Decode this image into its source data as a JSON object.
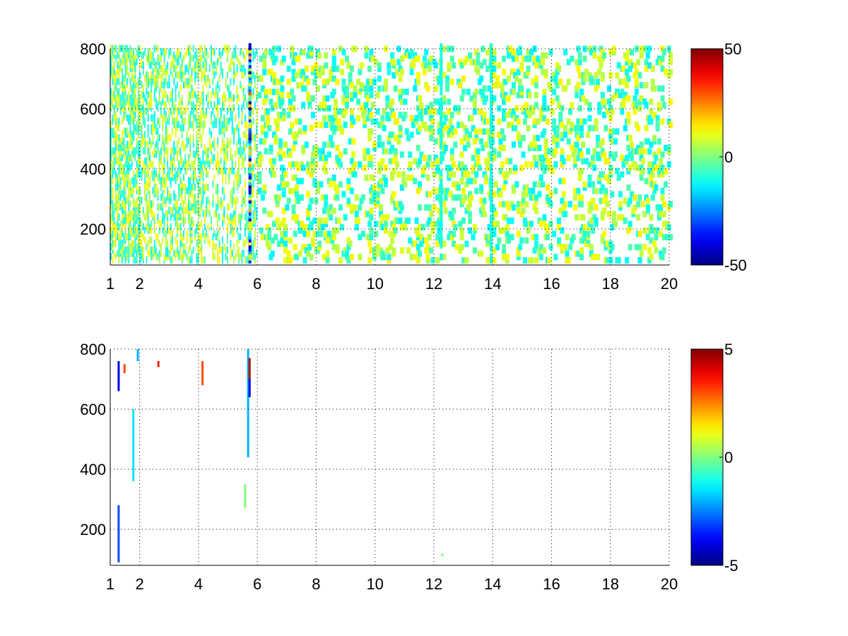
{
  "chart_data": [
    {
      "type": "heatmap",
      "title": "",
      "xlabel": "",
      "ylabel": "",
      "xlim": [
        1,
        20
      ],
      "ylim": [
        80,
        800
      ],
      "x_ticks": [
        1,
        2,
        4,
        6,
        8,
        10,
        12,
        14,
        16,
        18,
        20
      ],
      "y_ticks": [
        200,
        400,
        600,
        800
      ],
      "grid": true,
      "colormap": "jet",
      "colorbar": {
        "min": -50,
        "max": 50,
        "ticks": [
          50,
          0,
          -50
        ]
      },
      "notable_columns": [
        {
          "x": 5.7,
          "value_range": [
            -50,
            30
          ]
        },
        {
          "x": 12.2,
          "value_range": [
            -10,
            -10
          ]
        },
        {
          "x": 13.9,
          "value_range": [
            -10,
            -10
          ]
        }
      ],
      "description_of_values": "sparse cells with values mostly in -15..15 range"
    },
    {
      "type": "heatmap",
      "title": "",
      "xlabel": "",
      "ylabel": "",
      "xlim": [
        1,
        20
      ],
      "ylim": [
        80,
        800
      ],
      "x_ticks": [
        1,
        2,
        4,
        6,
        8,
        10,
        12,
        14,
        16,
        18,
        20
      ],
      "y_ticks": [
        200,
        400,
        600,
        800
      ],
      "grid": true,
      "colormap": "jet",
      "colorbar": {
        "min": -5,
        "max": 5,
        "ticks": [
          5,
          0,
          -5
        ]
      },
      "points": [
        {
          "x": 1.25,
          "y_from": 90,
          "y_to": 280,
          "value": -3
        },
        {
          "x": 1.25,
          "y_from": 660,
          "y_to": 760,
          "value": -4
        },
        {
          "x": 1.45,
          "y_from": 720,
          "y_to": 750,
          "value": 3
        },
        {
          "x": 1.75,
          "y_from": 360,
          "y_to": 600,
          "value": -1.5
        },
        {
          "x": 1.9,
          "y_from": 760,
          "y_to": 800,
          "value": -2
        },
        {
          "x": 2.6,
          "y_from": 740,
          "y_to": 760,
          "value": 3.5
        },
        {
          "x": 4.1,
          "y_from": 680,
          "y_to": 760,
          "value": 3
        },
        {
          "x": 5.55,
          "y_from": 270,
          "y_to": 350,
          "value": 0
        },
        {
          "x": 5.65,
          "y_from": 440,
          "y_to": 800,
          "value": -2
        },
        {
          "x": 5.7,
          "y_from": 700,
          "y_to": 770,
          "value": 4.5
        },
        {
          "x": 5.7,
          "y_from": 640,
          "y_to": 700,
          "value": -4
        },
        {
          "x": 12.25,
          "y_from": 110,
          "y_to": 120,
          "value": 0
        }
      ]
    }
  ]
}
